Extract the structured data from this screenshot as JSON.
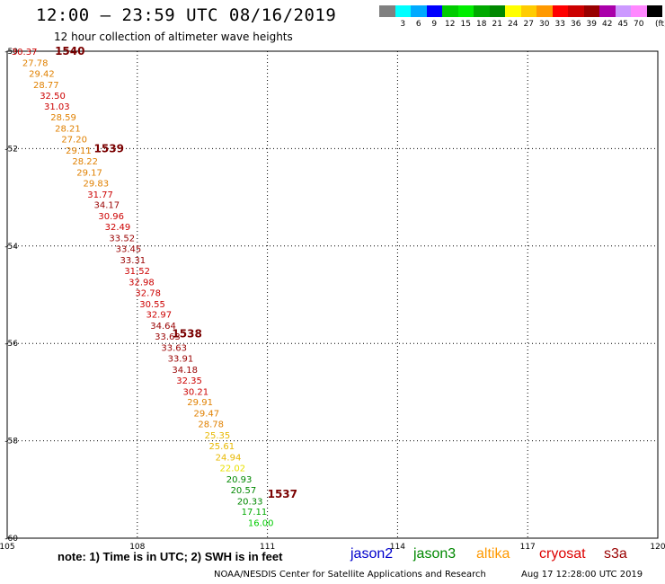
{
  "header": {
    "title": "12:00 – 23:59 UTC 08/16/2019",
    "subtitle": "12 hour collection of altimeter wave heights"
  },
  "color_scale": {
    "unit": "(ft)",
    "swatches": [
      {
        "color": "#808080",
        "label": ""
      },
      {
        "color": "#00ffff",
        "label": "3"
      },
      {
        "color": "#00aaff",
        "label": "6"
      },
      {
        "color": "#0000ff",
        "label": "9"
      },
      {
        "color": "#00cc00",
        "label": "12"
      },
      {
        "color": "#00ee00",
        "label": "15"
      },
      {
        "color": "#00aa00",
        "label": "18"
      },
      {
        "color": "#008800",
        "label": "21"
      },
      {
        "color": "#ffff00",
        "label": "24"
      },
      {
        "color": "#ffcc00",
        "label": "27"
      },
      {
        "color": "#ff9900",
        "label": "30"
      },
      {
        "color": "#ff0000",
        "label": "33"
      },
      {
        "color": "#cc0000",
        "label": "36"
      },
      {
        "color": "#990000",
        "label": "39"
      },
      {
        "color": "#aa00aa",
        "label": "42"
      },
      {
        "color": "#cc99ff",
        "label": "45"
      },
      {
        "color": "#ff88ff",
        "label": "70"
      },
      {
        "color": "#000000",
        "label": ""
      }
    ]
  },
  "map": {
    "lon_range": [
      105,
      120
    ],
    "lat_range": [
      -60,
      -50
    ],
    "lon_ticks": [
      {
        "value": 105,
        "label": "105"
      },
      {
        "value": 108,
        "label": "108"
      },
      {
        "value": 111,
        "label": "111"
      },
      {
        "value": 114,
        "label": "114"
      },
      {
        "value": 117,
        "label": "117"
      },
      {
        "value": 120,
        "label": "120"
      }
    ],
    "lat_ticks": [
      {
        "value": -50,
        "label": "-50"
      },
      {
        "value": -52,
        "label": "-52"
      },
      {
        "value": -54,
        "label": "-54"
      },
      {
        "value": -56,
        "label": "-56"
      },
      {
        "value": -58,
        "label": "-58"
      },
      {
        "value": -60,
        "label": "-60"
      }
    ],
    "pass_labels": [
      {
        "label": "1540",
        "lon": 106.1,
        "lat": -50.0
      },
      {
        "label": "1539",
        "lon": 107.0,
        "lat": -52.0
      },
      {
        "label": "1538",
        "lon": 108.8,
        "lat": -55.8
      },
      {
        "label": "1537",
        "lon": 111.0,
        "lat": -59.1
      }
    ],
    "observations": [
      {
        "value": "30.37",
        "lon": 105.1,
        "lat": -50.0,
        "color": "#cc0000"
      },
      {
        "value": "27.78",
        "lon": 105.35,
        "lat": -50.23,
        "color": "#e08000"
      },
      {
        "value": "29.42",
        "lon": 105.5,
        "lat": -50.45,
        "color": "#e08000"
      },
      {
        "value": "28.77",
        "lon": 105.6,
        "lat": -50.68,
        "color": "#e08000"
      },
      {
        "value": "32.50",
        "lon": 105.75,
        "lat": -50.9,
        "color": "#cc0000"
      },
      {
        "value": "31.03",
        "lon": 105.85,
        "lat": -51.13,
        "color": "#cc0000"
      },
      {
        "value": "28.59",
        "lon": 106.0,
        "lat": -51.35,
        "color": "#e08000"
      },
      {
        "value": "28.21",
        "lon": 106.1,
        "lat": -51.58,
        "color": "#e08000"
      },
      {
        "value": "27.20",
        "lon": 106.25,
        "lat": -51.8,
        "color": "#e08000"
      },
      {
        "value": "29.11",
        "lon": 106.35,
        "lat": -52.03,
        "color": "#e08000"
      },
      {
        "value": "28.22",
        "lon": 106.5,
        "lat": -52.25,
        "color": "#e08000"
      },
      {
        "value": "29.17",
        "lon": 106.6,
        "lat": -52.48,
        "color": "#e08000"
      },
      {
        "value": "29.83",
        "lon": 106.75,
        "lat": -52.7,
        "color": "#e08000"
      },
      {
        "value": "31.77",
        "lon": 106.85,
        "lat": -52.93,
        "color": "#cc0000"
      },
      {
        "value": "34.17",
        "lon": 107.0,
        "lat": -53.15,
        "color": "#990000"
      },
      {
        "value": "30.96",
        "lon": 107.1,
        "lat": -53.38,
        "color": "#cc0000"
      },
      {
        "value": "32.49",
        "lon": 107.25,
        "lat": -53.6,
        "color": "#cc0000"
      },
      {
        "value": "33.52",
        "lon": 107.35,
        "lat": -53.83,
        "color": "#990000"
      },
      {
        "value": "33.45",
        "lon": 107.5,
        "lat": -54.05,
        "color": "#990000"
      },
      {
        "value": "33.31",
        "lon": 107.6,
        "lat": -54.28,
        "color": "#990000"
      },
      {
        "value": "31.52",
        "lon": 107.7,
        "lat": -54.5,
        "color": "#cc0000"
      },
      {
        "value": "32.98",
        "lon": 107.8,
        "lat": -54.73,
        "color": "#cc0000"
      },
      {
        "value": "32.78",
        "lon": 107.95,
        "lat": -54.95,
        "color": "#cc0000"
      },
      {
        "value": "30.55",
        "lon": 108.05,
        "lat": -55.18,
        "color": "#cc0000"
      },
      {
        "value": "32.97",
        "lon": 108.2,
        "lat": -55.4,
        "color": "#cc0000"
      },
      {
        "value": "34.64",
        "lon": 108.3,
        "lat": -55.63,
        "color": "#990000"
      },
      {
        "value": "33.63",
        "lon": 108.4,
        "lat": -55.85,
        "color": "#990000"
      },
      {
        "value": "33.63",
        "lon": 108.55,
        "lat": -56.08,
        "color": "#990000"
      },
      {
        "value": "33.91",
        "lon": 108.7,
        "lat": -56.3,
        "color": "#990000"
      },
      {
        "value": "34.18",
        "lon": 108.8,
        "lat": -56.53,
        "color": "#990000"
      },
      {
        "value": "32.35",
        "lon": 108.9,
        "lat": -56.75,
        "color": "#cc0000"
      },
      {
        "value": "30.21",
        "lon": 109.05,
        "lat": -56.98,
        "color": "#cc0000"
      },
      {
        "value": "29.91",
        "lon": 109.15,
        "lat": -57.2,
        "color": "#e08000"
      },
      {
        "value": "29.47",
        "lon": 109.3,
        "lat": -57.43,
        "color": "#e08000"
      },
      {
        "value": "28.78",
        "lon": 109.4,
        "lat": -57.65,
        "color": "#e08000"
      },
      {
        "value": "25.35",
        "lon": 109.55,
        "lat": -57.88,
        "color": "#e8b800"
      },
      {
        "value": "25.61",
        "lon": 109.65,
        "lat": -58.1,
        "color": "#e8b800"
      },
      {
        "value": "24.94",
        "lon": 109.8,
        "lat": -58.33,
        "color": "#e8b800"
      },
      {
        "value": "22.02",
        "lon": 109.9,
        "lat": -58.55,
        "color": "#e8e000"
      },
      {
        "value": "20.93",
        "lon": 110.05,
        "lat": -58.78,
        "color": "#008800"
      },
      {
        "value": "20.57",
        "lon": 110.15,
        "lat": -59.0,
        "color": "#008800"
      },
      {
        "value": "20.33",
        "lon": 110.3,
        "lat": -59.23,
        "color": "#008800"
      },
      {
        "value": "17.11",
        "lon": 110.4,
        "lat": -59.45,
        "color": "#00aa00"
      },
      {
        "value": "16.00",
        "lon": 110.55,
        "lat": -59.68,
        "color": "#00cc00"
      }
    ]
  },
  "footer": {
    "note": "note: 1) Time is in UTC; 2) SWH is in feet",
    "legend": [
      {
        "label": "jason2",
        "color": "#0000cc"
      },
      {
        "label": "jason3",
        "color": "#008800"
      },
      {
        "label": "altika",
        "color": "#ff9900"
      },
      {
        "label": "cryosat",
        "color": "#dd0000"
      },
      {
        "label": "s3a",
        "color": "#990000"
      }
    ],
    "credit": "NOAA/NESDIS Center for Satellite Applications and Research",
    "timestamp": "Aug 17 12:28:00 UTC 2019"
  }
}
